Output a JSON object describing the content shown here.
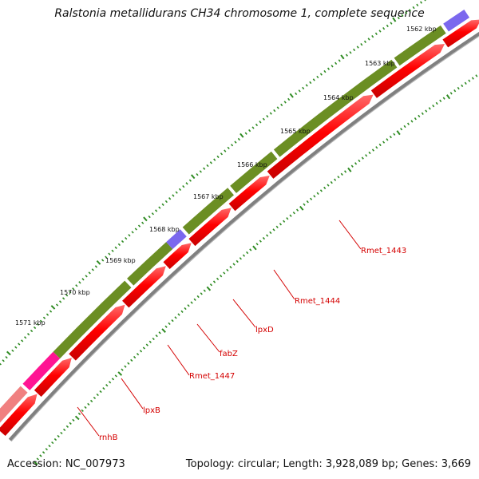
{
  "title": "Ralstonia metallidurans CH34 chromosome 1, complete sequence",
  "accession_text": "Accession: NC_007973",
  "summary_text": "Topology: circular; Length: 3,928,089 bp; Genes: 3,669",
  "scale_labels": [
    "1562 kbp",
    "1563 kbp",
    "1564 kbp",
    "1565 kbp",
    "1566 kbp",
    "1567 kbp",
    "1568 kbp",
    "1569 kbp",
    "1570 kbp",
    "1571 kbp"
  ],
  "gene_labels": [
    "Rmet_1443",
    "Rmet_1444",
    "lpxD",
    "fabZ",
    "Rmet_1447",
    "lpxB",
    "rnhB"
  ],
  "colors": {
    "backbone": "#808080",
    "forward_cds": "#ff0000",
    "reverse_cds": "#6b8e23",
    "blue_feature": "#7b68ee",
    "magenta_feature": "#ff1493",
    "pink_feature": "#f08080",
    "ticks": "#2e8b22",
    "label_red": "#d40000"
  }
}
